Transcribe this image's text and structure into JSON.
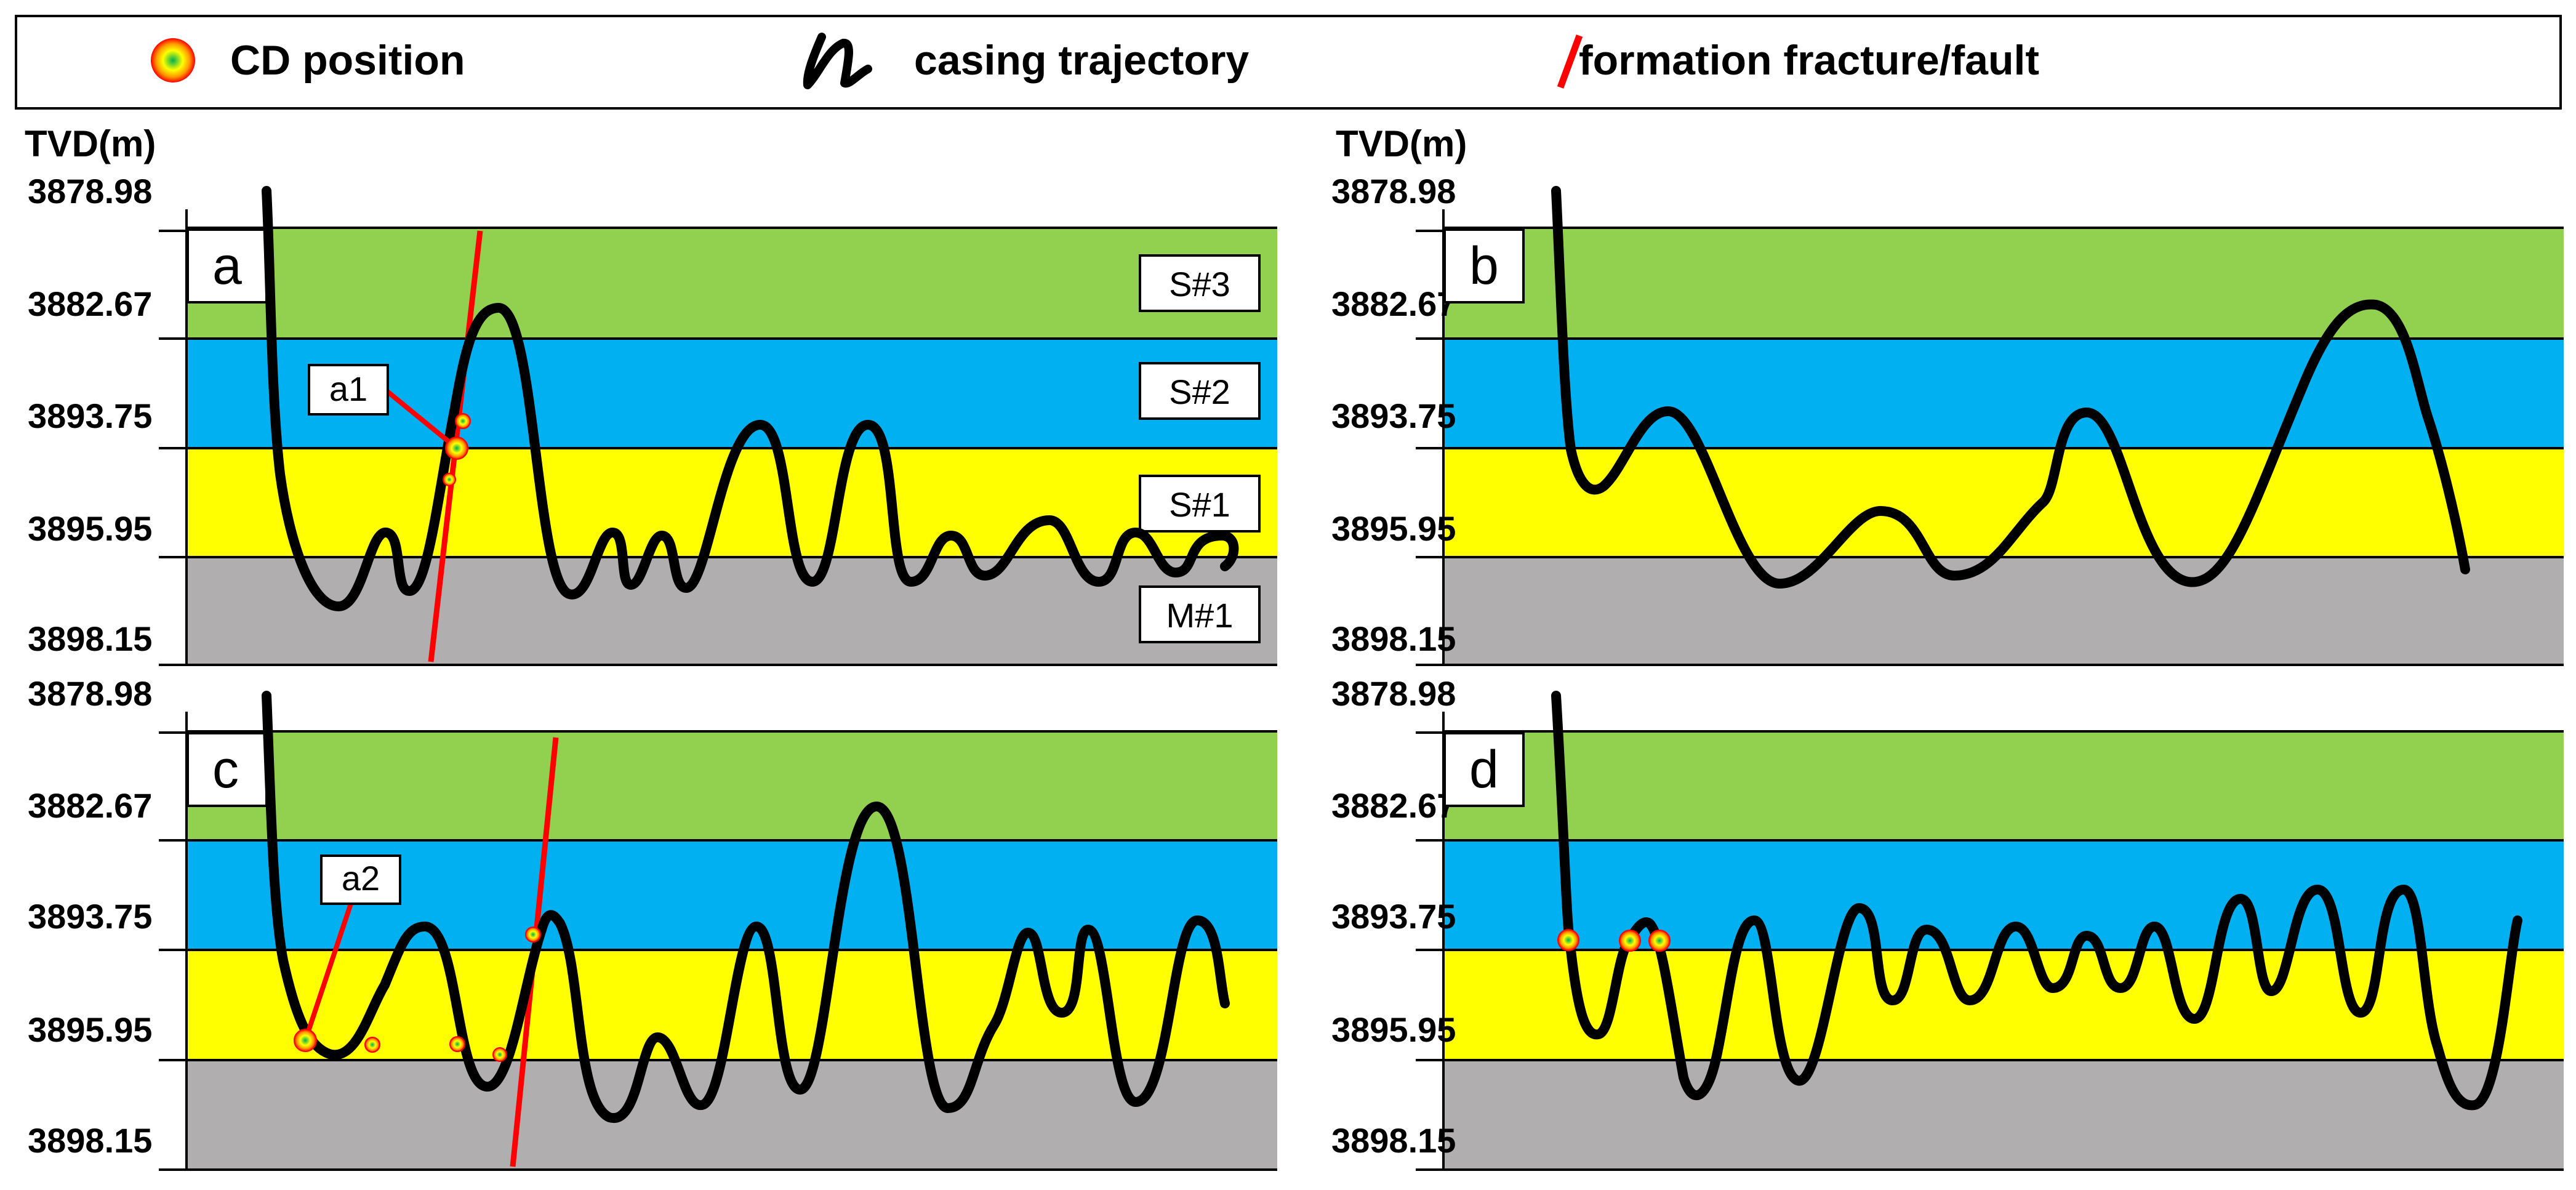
{
  "legend": {
    "cd_label": "CD position",
    "casing_label": "casing trajectory",
    "fault_label": "formation fracture/fault"
  },
  "colors": {
    "S3": "#92d050",
    "S2": "#00b0f0",
    "S1": "#ffff00",
    "M1": "#b0aeae",
    "fault": "#ff0000",
    "trajectory": "#000000"
  },
  "axis_label": "TVD(m)",
  "ticks": [
    "3878.98",
    "3882.67",
    "3893.75",
    "3895.95",
    "3898.15"
  ],
  "layers": [
    "S#3",
    "S#2",
    "S#1",
    "M#1"
  ],
  "panels": [
    {
      "letter": "a",
      "annotation": "a1"
    },
    {
      "letter": "b"
    },
    {
      "letter": "c",
      "annotation": "a2"
    },
    {
      "letter": "d"
    }
  ]
}
